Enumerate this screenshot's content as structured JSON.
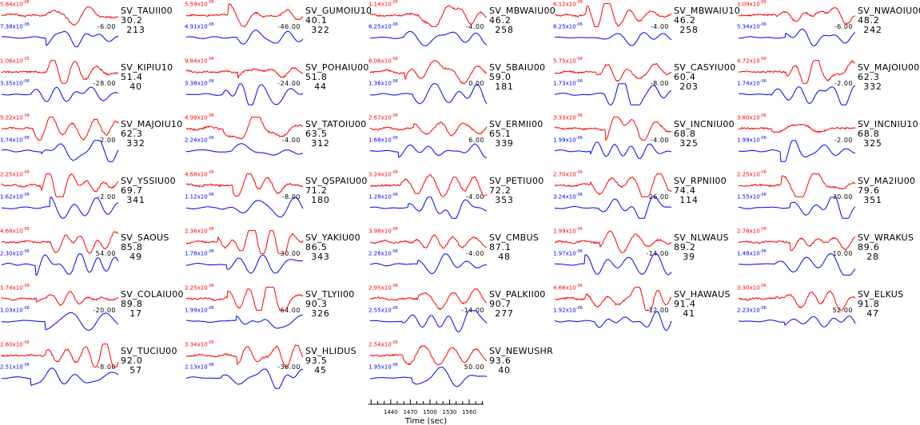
{
  "chart_data": {
    "type": "line",
    "title": "",
    "xlabel": "Time (sec)",
    "x_ticks": [
      1440,
      1470,
      1500,
      1530,
      1560
    ],
    "xlim": [
      1406,
      1582
    ],
    "series_colors": {
      "observed": "#ff0000",
      "synthetic": "#0000ff"
    },
    "panels": [
      {
        "station": "SV_TAUII00",
        "dist": "30.2",
        "az": "213",
        "amp_red": "5.84",
        "exp_red": "-06",
        "amp_blue": "7.38",
        "exp_blue": "-06",
        "shift": "-6.00"
      },
      {
        "station": "SV_GUMOIU10",
        "dist": "40.1",
        "az": "322",
        "amp_red": "5.59",
        "exp_red": "-06",
        "amp_blue": "4.91",
        "exp_blue": "-06",
        "shift": "-46.00"
      },
      {
        "station": "SV_MBWAIU00",
        "dist": "46.2",
        "az": "258",
        "amp_red": "1.14",
        "exp_red": "-05",
        "amp_blue": "6.25",
        "exp_blue": "-06",
        "shift": "-4.00"
      },
      {
        "station": "SV_MBWAIU10",
        "dist": "46.2",
        "az": "258",
        "amp_red": "6.12",
        "exp_red": "-06",
        "amp_blue": "6.25",
        "exp_blue": "-06",
        "shift": "-4.00"
      },
      {
        "station": "SV_NWAOIU00",
        "dist": "48.2",
        "az": "242",
        "amp_red": "1.09",
        "exp_red": "-05",
        "amp_blue": "5.34",
        "exp_blue": "-06",
        "shift": "-6.00"
      },
      {
        "station": "SV_KIPIU10",
        "dist": "51.4",
        "az": "40",
        "amp_red": "1.06",
        "exp_red": "-05",
        "amp_blue": "3.35",
        "exp_blue": "-06",
        "shift": "-28.00"
      },
      {
        "station": "SV_POHAIU00",
        "dist": "51.8",
        "az": "44",
        "amp_red": "9.84",
        "exp_red": "-06",
        "amp_blue": "3.38",
        "exp_blue": "-06",
        "shift": "-24.00"
      },
      {
        "station": "SV_SBAIU00",
        "dist": "59.0",
        "az": "181",
        "amp_red": "6.06",
        "exp_red": "-06",
        "amp_blue": "1.36",
        "exp_blue": "-06",
        "shift": "0.00"
      },
      {
        "station": "SV_CASYIU00",
        "dist": "60.4",
        "az": "203",
        "amp_red": "5.75",
        "exp_red": "-06",
        "amp_blue": "1.73",
        "exp_blue": "-06",
        "shift": "-8.00"
      },
      {
        "station": "SV_MAJOIU00",
        "dist": "62.3",
        "az": "332",
        "amp_red": "4.72",
        "exp_red": "-06",
        "amp_blue": "1.74",
        "exp_blue": "-06",
        "shift": "-2.00"
      },
      {
        "station": "SV_MAJOIU10",
        "dist": "62.3",
        "az": "332",
        "amp_red": "5.22",
        "exp_red": "-06",
        "amp_blue": "1.74",
        "exp_blue": "-06",
        "shift": "-2.00"
      },
      {
        "station": "SV_TATOIU00",
        "dist": "63.5",
        "az": "312",
        "amp_red": "4.99",
        "exp_red": "-06",
        "amp_blue": "2.24",
        "exp_blue": "-06",
        "shift": "-4.00"
      },
      {
        "station": "SV_ERMII00",
        "dist": "65.1",
        "az": "339",
        "amp_red": "2.67",
        "exp_red": "-06",
        "amp_blue": "1.68",
        "exp_blue": "-06",
        "shift": "6.00"
      },
      {
        "station": "SV_INCNIU00",
        "dist": "68.8",
        "az": "325",
        "amp_red": "3.33",
        "exp_red": "-06",
        "amp_blue": "1.99",
        "exp_blue": "-06",
        "shift": "-4.00"
      },
      {
        "station": "SV_INCNIU10",
        "dist": "68.8",
        "az": "325",
        "amp_red": "3.80",
        "exp_red": "-06",
        "amp_blue": "1.99",
        "exp_blue": "-06",
        "shift": "-2.00"
      },
      {
        "station": "SV_YSSIU00",
        "dist": "69.7",
        "az": "341",
        "amp_red": "2.25",
        "exp_red": "-06",
        "amp_blue": "1.62",
        "exp_blue": "-06",
        "shift": "-2.00"
      },
      {
        "station": "SV_QSPAIU00",
        "dist": "71.2",
        "az": "180",
        "amp_red": "4.68",
        "exp_red": "-06",
        "amp_blue": "1.12",
        "exp_blue": "-06",
        "shift": "-8.00"
      },
      {
        "station": "SV_PETIU00",
        "dist": "72.2",
        "az": "353",
        "amp_red": "3.24",
        "exp_red": "-06",
        "amp_blue": "1.28",
        "exp_blue": "-06",
        "shift": "-4.00"
      },
      {
        "station": "SV_RPNII00",
        "dist": "74.4",
        "az": "114",
        "amp_red": "2.70",
        "exp_red": "-06",
        "amp_blue": "3.24",
        "exp_blue": "-06",
        "shift": "26.00"
      },
      {
        "station": "SV_MA2IU00",
        "dist": "79.6",
        "az": "351",
        "amp_red": "2.25",
        "exp_red": "-06",
        "amp_blue": "1.55",
        "exp_blue": "-06",
        "shift": "30.00"
      },
      {
        "station": "SV_SAOUS",
        "dist": "85.8",
        "az": "49",
        "amp_red": "4.68",
        "exp_red": "-06",
        "amp_blue": "2.30",
        "exp_blue": "-06",
        "shift": "54.00"
      },
      {
        "station": "SV_YAKIU00",
        "dist": "86.5",
        "az": "343",
        "amp_red": "2.36",
        "exp_red": "-06",
        "amp_blue": "1.78",
        "exp_blue": "-06",
        "shift": "30.00"
      },
      {
        "station": "SV_CMBUS",
        "dist": "87.1",
        "az": "48",
        "amp_red": "3.98",
        "exp_red": "-06",
        "amp_blue": "2.26",
        "exp_blue": "-06",
        "shift": "-4.00"
      },
      {
        "station": "SV_NLWAUS",
        "dist": "89.2",
        "az": "39",
        "amp_red": "1.99",
        "exp_red": "-06",
        "amp_blue": "1.97",
        "exp_blue": "-06",
        "shift": "-14.00"
      },
      {
        "station": "SV_WRAKUS",
        "dist": "89.6",
        "az": "28",
        "amp_red": "2.78",
        "exp_red": "-06",
        "amp_blue": "1.48",
        "exp_blue": "-06",
        "shift": "-10.00"
      },
      {
        "station": "SV_COLAIU00",
        "dist": "89.8",
        "az": "17",
        "amp_red": "1.74",
        "exp_red": "-06",
        "amp_blue": "1.03",
        "exp_blue": "-06",
        "shift": "-20.00"
      },
      {
        "station": "SV_TLYII00",
        "dist": "90.3",
        "az": "326",
        "amp_red": "2.25",
        "exp_red": "-06",
        "amp_blue": "1.99",
        "exp_blue": "-06",
        "shift": "64.00"
      },
      {
        "station": "SV_PALKII00",
        "dist": "90.7",
        "az": "277",
        "amp_red": "2.95",
        "exp_red": "-06",
        "amp_blue": "2.55",
        "exp_blue": "-06",
        "shift": "-14.00"
      },
      {
        "station": "SV_HAWAUS",
        "dist": "91.4",
        "az": "41",
        "amp_red": "4.66",
        "exp_red": "-06",
        "amp_blue": "1.92",
        "exp_blue": "-06",
        "shift": "-12.00"
      },
      {
        "station": "SV_ELKUS",
        "dist": "91.8",
        "az": "47",
        "amp_red": "3.30",
        "exp_red": "-06",
        "amp_blue": "2.23",
        "exp_blue": "-06",
        "shift": "52.00"
      },
      {
        "station": "SV_TUCIU00",
        "dist": "92.0",
        "az": "57",
        "amp_red": "2.60",
        "exp_red": "-06",
        "amp_blue": "2.51",
        "exp_blue": "-06",
        "shift": "-8.00"
      },
      {
        "station": "SV_HLIDUS",
        "dist": "93.5",
        "az": "45",
        "amp_red": "3.34",
        "exp_red": "-06",
        "amp_blue": "2.13",
        "exp_blue": "-06",
        "shift": "-36.00"
      },
      {
        "station": "SV_NEWUSHR",
        "dist": "93.6",
        "az": "40",
        "amp_red": "2.54",
        "exp_red": "-06",
        "amp_blue": "1.95",
        "exp_blue": "-06",
        "shift": "50.00"
      }
    ],
    "x_mult": "x10"
  }
}
